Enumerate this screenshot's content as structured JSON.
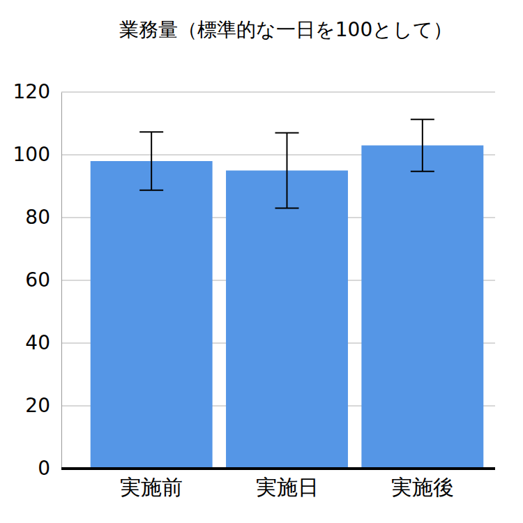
{
  "chart_data": {
    "type": "bar",
    "title": "業務量（標準的な一日を100として）",
    "categories": [
      "実施前",
      "実施日",
      "実施後"
    ],
    "values": [
      98,
      95,
      103
    ],
    "errors": [
      9.3,
      12,
      8.3
    ],
    "color": "#5596e6",
    "ylim": [
      0,
      120
    ],
    "yticks": [
      0,
      20,
      40,
      60,
      80,
      100,
      120
    ],
    "grid": true
  }
}
